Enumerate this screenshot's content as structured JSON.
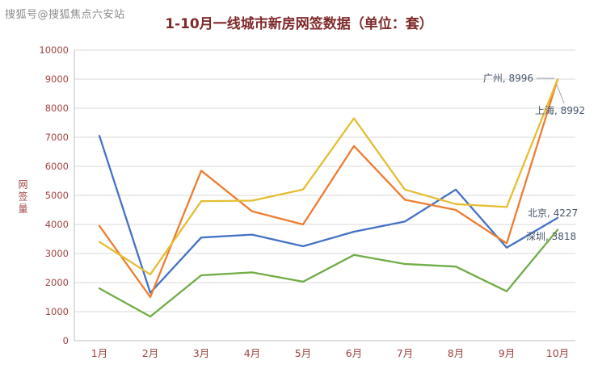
{
  "watermark": "搜狐号@搜狐焦点六安站",
  "chart_data": {
    "type": "line",
    "title": "1-10月一线城市新房网签数据（单位：套）",
    "ylabel": "网签量",
    "xlabel": "",
    "categories": [
      "1月",
      "2月",
      "3月",
      "4月",
      "5月",
      "6月",
      "7月",
      "8月",
      "9月",
      "10月"
    ],
    "ylim": [
      0,
      10000
    ],
    "ytick_step": 1000,
    "grid": true,
    "legend": "none",
    "series": [
      {
        "name": "北京",
        "color": "#4472C4",
        "values": [
          7050,
          1650,
          3550,
          3650,
          3250,
          3750,
          4100,
          5200,
          3200,
          4227
        ]
      },
      {
        "name": "上海",
        "color": "#ED7D31",
        "values": [
          3950,
          1500,
          5850,
          4450,
          4000,
          6700,
          4850,
          4500,
          3350,
          8992
        ]
      },
      {
        "name": "广州",
        "color": "#E5BE32",
        "values": [
          3400,
          2280,
          4800,
          4820,
          5200,
          7650,
          5200,
          4700,
          4600,
          8996
        ]
      },
      {
        "name": "深圳",
        "color": "#70AD47",
        "values": [
          1800,
          830,
          2250,
          2350,
          2030,
          2950,
          2640,
          2550,
          1700,
          3818
        ]
      }
    ],
    "annotations": [
      {
        "text": "广州, 8996",
        "x": 660,
        "y": 101,
        "anchor": "end",
        "leader": [
          664,
          97,
          686,
          97
        ]
      },
      {
        "text": "上海, 8992",
        "x": 662,
        "y": 141,
        "anchor": "start",
        "leader": [
          689,
          105,
          698,
          128
        ]
      },
      {
        "text": "北京, 4227",
        "x": 653,
        "y": 268,
        "anchor": "start"
      },
      {
        "text": "深圳, 3818",
        "x": 651,
        "y": 297,
        "anchor": "start"
      }
    ]
  },
  "colors": {
    "title": "#7E2A2A",
    "axis_text": "#A04343",
    "annotation": "#44546A",
    "grid": "#D9D9D9",
    "axis_line": "#BFBFBF",
    "leader_line": "#9AA3AD",
    "watermark": "#8A8A8A",
    "background": "#FFFFFF"
  }
}
